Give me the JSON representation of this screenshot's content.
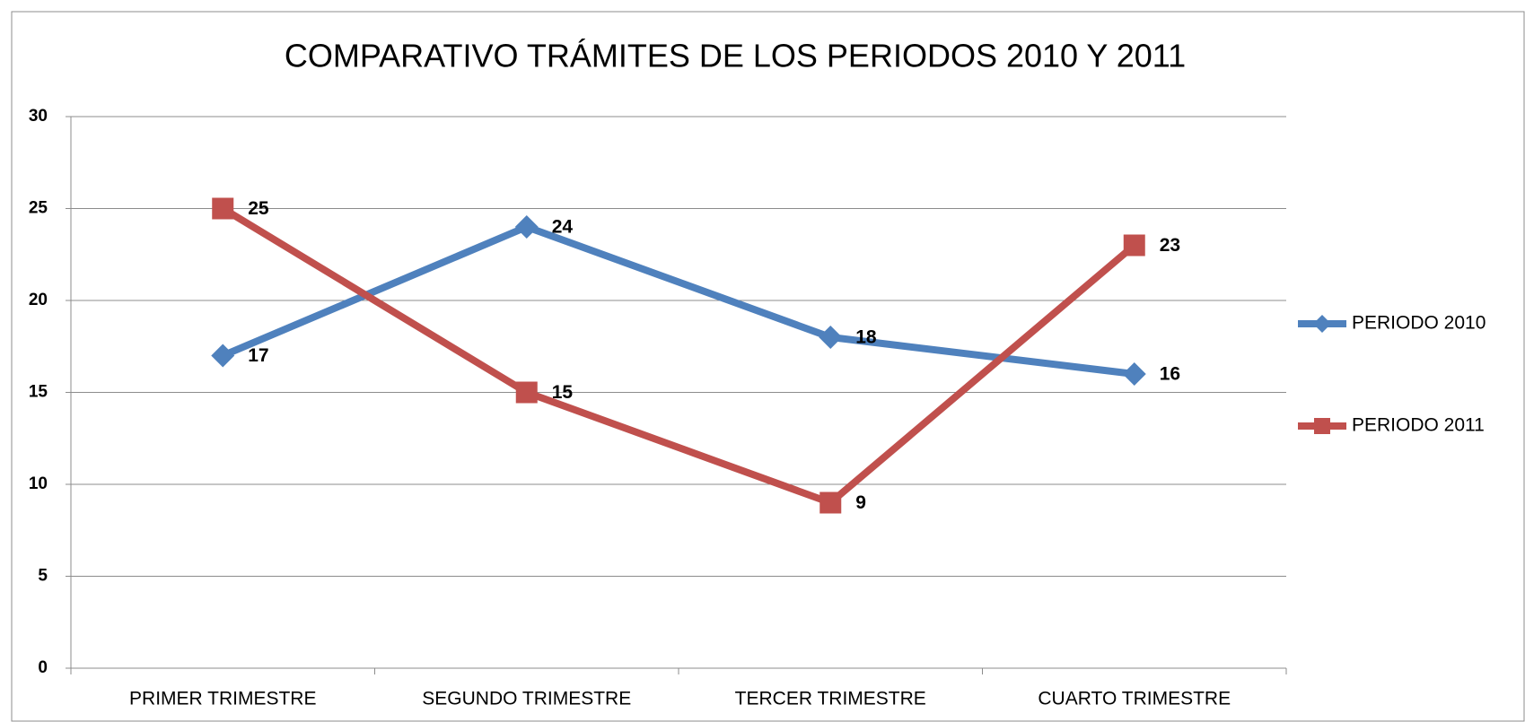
{
  "chart_data": {
    "type": "line",
    "title": "COMPARATIVO TRÁMITES DE LOS PERIODOS 2010 Y 2011",
    "categories": [
      "PRIMER TRIMESTRE",
      "SEGUNDO TRIMESTRE",
      "TERCER TRIMESTRE",
      "CUARTO TRIMESTRE"
    ],
    "series": [
      {
        "name": "PERIODO 2010",
        "color": "#4f81bd",
        "marker": "diamond",
        "values": [
          17,
          24,
          18,
          16
        ]
      },
      {
        "name": "PERIODO 2011",
        "color": "#c0504d",
        "marker": "square",
        "values": [
          25,
          15,
          9,
          23
        ]
      }
    ],
    "ylim": [
      0,
      30
    ],
    "yticks": [
      0,
      5,
      10,
      15,
      20,
      25,
      30
    ],
    "grid": true,
    "legend": "right"
  }
}
